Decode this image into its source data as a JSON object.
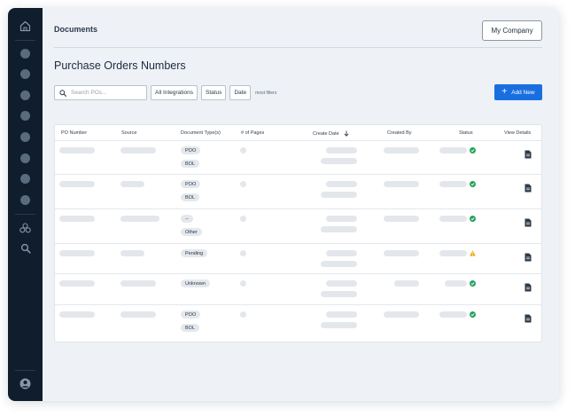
{
  "header": {
    "breadcrumb": "Documents",
    "company_button": "My Company"
  },
  "page": {
    "title": "Purchase Orders Numbers"
  },
  "toolbar": {
    "search_placeholder": "Search POs...",
    "filters": [
      "All Integrations",
      "Status",
      "Date"
    ],
    "more_filters": "most filters",
    "add_label": "Add New"
  },
  "table": {
    "columns": [
      "PO Number",
      "Source",
      "Document Type(s)",
      "# of Pages",
      "Create Date",
      "Created By",
      "Status",
      "View Details"
    ],
    "rows": [
      {
        "types": [
          "POO",
          "BOL"
        ],
        "status": "ok"
      },
      {
        "types": [
          "POO",
          "BOL"
        ],
        "status": "ok"
      },
      {
        "types": [
          "--",
          "Other"
        ],
        "status": "ok"
      },
      {
        "types": [
          "Pending"
        ],
        "status": "warning"
      },
      {
        "types": [
          "Unknown"
        ],
        "status": "ok"
      },
      {
        "types": [
          "POO",
          "BOL"
        ],
        "status": "ok"
      }
    ]
  },
  "colors": {
    "sidebar": "#0f1d2c",
    "accent": "#1a6fe0",
    "ok": "#22a35a",
    "warning": "#f0a500"
  },
  "icons": {
    "sidebar": [
      "home-icon",
      "nav-dot-icon",
      "integrations-icon",
      "search-icon",
      "user-icon"
    ],
    "row": "document-icon"
  }
}
